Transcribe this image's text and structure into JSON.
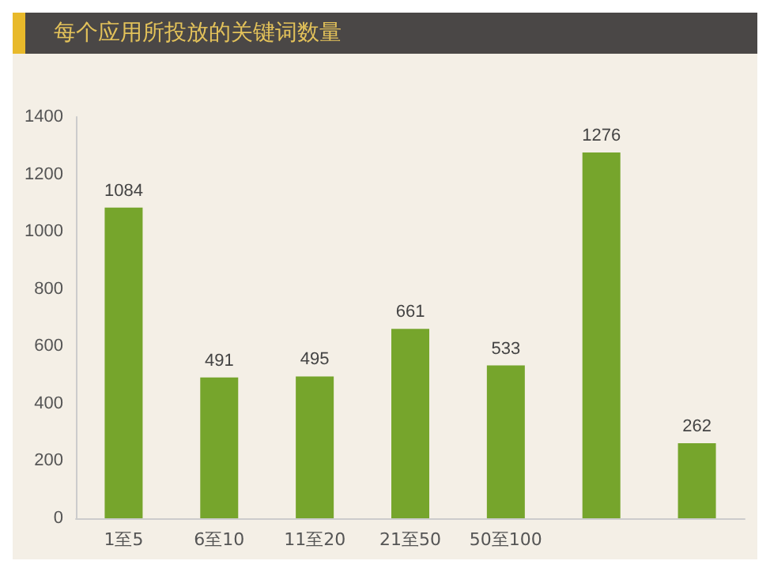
{
  "chart_data": {
    "type": "bar",
    "title": "每个应用所投放的关键词数量",
    "categories": [
      "1至5",
      "6至10",
      "11至20",
      "21至50",
      "50至100",
      null,
      null
    ],
    "values": [
      1084,
      491,
      495,
      661,
      533,
      1276,
      262
    ],
    "color": "#76a52c",
    "ylim": [
      0,
      1400
    ],
    "yticks": [
      0,
      200,
      400,
      600,
      800,
      1000,
      1200,
      1400
    ],
    "grid": false,
    "data_labels": true
  }
}
